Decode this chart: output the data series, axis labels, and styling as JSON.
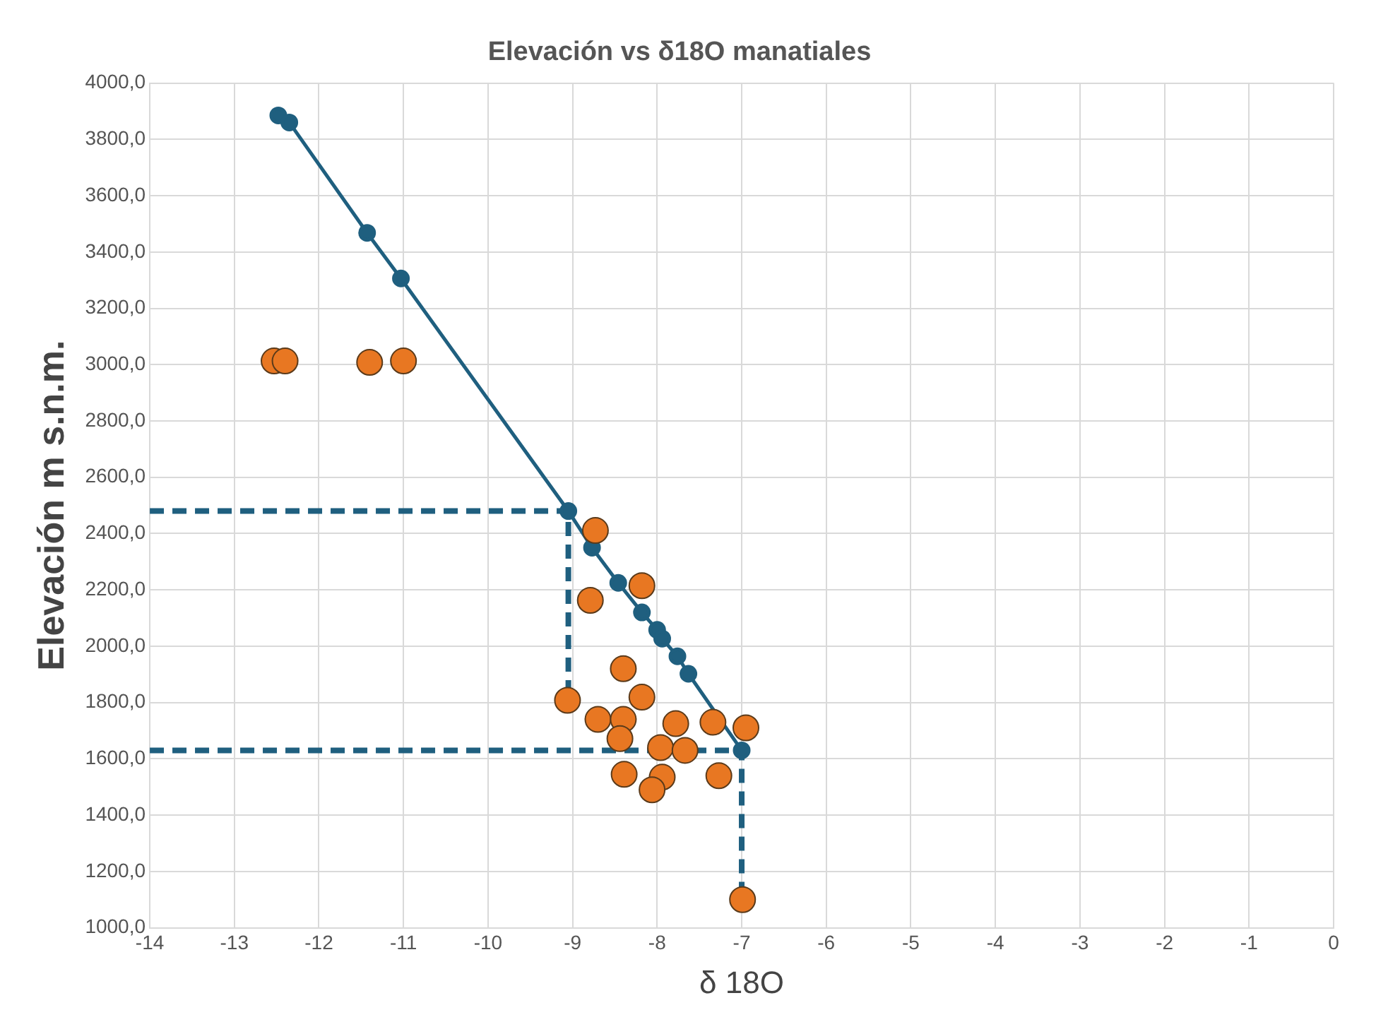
{
  "chart_data": {
    "type": "scatter",
    "title": "Elevación vs δ18O manatiales",
    "xlabel": "δ 18O",
    "ylabel": "Elevación m s.n.m.",
    "xlim": [
      -14,
      0
    ],
    "xticks": [
      -14,
      -13,
      -12,
      -11,
      -10,
      -9,
      -8,
      -7,
      -6,
      -5,
      -4,
      -3,
      -2,
      -1,
      0
    ],
    "ylim": [
      1000,
      4000
    ],
    "yticks": [
      {
        "value": 1000,
        "label": "1000,0"
      },
      {
        "value": 1200,
        "label": "1200,0"
      },
      {
        "value": 1400,
        "label": "1400,0"
      },
      {
        "value": 1600,
        "label": "1600,0"
      },
      {
        "value": 1800,
        "label": "1800,0"
      },
      {
        "value": 2000,
        "label": "2000,0"
      },
      {
        "value": 2200,
        "label": "2200,0"
      },
      {
        "value": 2400,
        "label": "2400,0"
      },
      {
        "value": 2600,
        "label": "2600,0"
      },
      {
        "value": 2800,
        "label": "2800,0"
      },
      {
        "value": 3000,
        "label": "3000,0"
      },
      {
        "value": 3200,
        "label": "3200,0"
      },
      {
        "value": 3400,
        "label": "3400,0"
      },
      {
        "value": 3600,
        "label": "3600,0"
      },
      {
        "value": 3800,
        "label": "3800,0"
      },
      {
        "value": 4000,
        "label": "4000,0"
      }
    ],
    "grid": true,
    "legend": false,
    "series": [
      {
        "type": "scatter",
        "marker": "circle",
        "color": "#e87722",
        "x": [
          -12.53,
          -12.4,
          -11.4,
          -11.0,
          -8.73,
          -8.18,
          -8.79,
          -8.4,
          -9.06,
          -8.18,
          -8.7,
          -8.4,
          -8.44,
          -7.78,
          -7.34,
          -6.95,
          -7.96,
          -7.67,
          -8.39,
          -7.94,
          -8.06,
          -7.27,
          -6.99
        ],
        "values": [
          3013,
          3013,
          3008,
          3013,
          2411,
          2215,
          2163,
          1920,
          1808,
          1819,
          1740,
          1740,
          1672,
          1725,
          1730,
          1710,
          1640,
          1630,
          1545,
          1535,
          1490,
          1540,
          1100
        ]
      },
      {
        "type": "line",
        "marker": "circle",
        "line_style": "solid",
        "color": "#1f5f7f",
        "x": [
          -12.48,
          -12.35,
          -11.43,
          -11.03,
          -9.05,
          -8.77,
          -8.46,
          -8.18,
          -8.0,
          -7.94,
          -7.76,
          -7.63,
          -7.0
        ],
        "values": [
          3885,
          3860,
          3468,
          3306,
          2480,
          2350,
          2225,
          2120,
          2058,
          2027,
          1964,
          1902,
          1630
        ]
      },
      {
        "type": "line",
        "marker": "none",
        "line_style": "dashed",
        "color": "#1f5f7f",
        "x": [
          -14,
          -9.05,
          -9.05
        ],
        "values": [
          2480,
          2480,
          1808
        ]
      },
      {
        "type": "line",
        "marker": "none",
        "line_style": "dashed",
        "color": "#1f5f7f",
        "x": [
          -14,
          -7,
          -7
        ],
        "values": [
          1630,
          1630,
          1100
        ]
      }
    ]
  }
}
